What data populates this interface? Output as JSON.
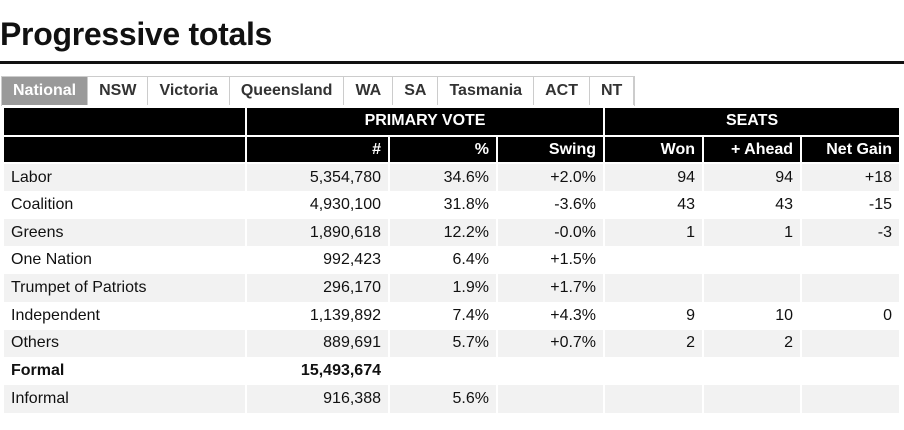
{
  "page": {
    "title": "Progressive totals"
  },
  "tabs": [
    {
      "label": "National",
      "active": true
    },
    {
      "label": "NSW",
      "active": false
    },
    {
      "label": "Victoria",
      "active": false
    },
    {
      "label": "Queensland",
      "active": false
    },
    {
      "label": "WA",
      "active": false
    },
    {
      "label": "SA",
      "active": false
    },
    {
      "label": "Tasmania",
      "active": false
    },
    {
      "label": "ACT",
      "active": false
    },
    {
      "label": "NT",
      "active": false
    }
  ],
  "table": {
    "group_headers": {
      "primary_vote": "PRIMARY VOTE",
      "seats": "SEATS"
    },
    "columns": {
      "votes": "#",
      "pct": "%",
      "swing": "Swing",
      "won": "Won",
      "ahead": "+ Ahead",
      "net_gain": "Net Gain"
    },
    "rows": [
      {
        "party": "Labor",
        "votes": "5,354,780",
        "pct": "34.6%",
        "swing": "+2.0%",
        "won": "94",
        "ahead": "94",
        "net_gain": "+18"
      },
      {
        "party": "Coalition",
        "votes": "4,930,100",
        "pct": "31.8%",
        "swing": "-3.6%",
        "won": "43",
        "ahead": "43",
        "net_gain": "-15"
      },
      {
        "party": "Greens",
        "votes": "1,890,618",
        "pct": "12.2%",
        "swing": "-0.0%",
        "won": "1",
        "ahead": "1",
        "net_gain": "-3"
      },
      {
        "party": "One Nation",
        "votes": "992,423",
        "pct": "6.4%",
        "swing": "+1.5%",
        "won": "",
        "ahead": "",
        "net_gain": ""
      },
      {
        "party": "Trumpet of Patriots",
        "votes": "296,170",
        "pct": "1.9%",
        "swing": "+1.7%",
        "won": "",
        "ahead": "",
        "net_gain": ""
      },
      {
        "party": "Independent",
        "votes": "1,139,892",
        "pct": "7.4%",
        "swing": "+4.3%",
        "won": "9",
        "ahead": "10",
        "net_gain": "0"
      },
      {
        "party": "Others",
        "votes": "889,691",
        "pct": "5.7%",
        "swing": "+0.7%",
        "won": "2",
        "ahead": "2",
        "net_gain": ""
      },
      {
        "party": "Formal",
        "votes": "15,493,674",
        "pct": "",
        "swing": "",
        "won": "",
        "ahead": "",
        "net_gain": ""
      },
      {
        "party": "Informal",
        "votes": "916,388",
        "pct": "5.6%",
        "swing": "",
        "won": "",
        "ahead": "",
        "net_gain": ""
      }
    ]
  }
}
